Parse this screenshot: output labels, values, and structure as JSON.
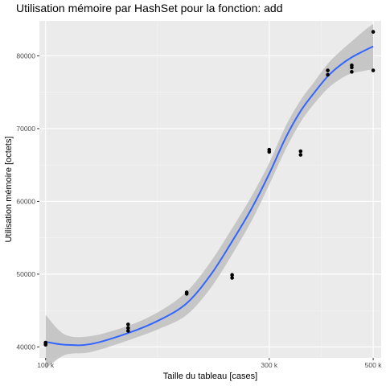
{
  "chart_data": {
    "type": "scatter",
    "title": "Utilisation mémoire par HashSet pour la fonction: add",
    "xlabel": "Taille du tableau [cases]",
    "ylabel": "Utilisation mémoire [octets]",
    "x_scale": "log",
    "xlim": [
      97000,
      520000
    ],
    "ylim": [
      38500,
      84800
    ],
    "x_ticks": [
      {
        "value": 100000,
        "label": "100 k"
      },
      {
        "value": 300000,
        "label": "300 k"
      },
      {
        "value": 500000,
        "label": "500 k"
      }
    ],
    "x_minor_ticks": [
      173200,
      387300
    ],
    "y_ticks": [
      {
        "value": 40000,
        "label": "40000"
      },
      {
        "value": 50000,
        "label": "50000"
      },
      {
        "value": 60000,
        "label": "60000"
      },
      {
        "value": 70000,
        "label": "70000"
      },
      {
        "value": 80000,
        "label": "80000"
      }
    ],
    "grid": true,
    "points": [
      {
        "x": 100000,
        "y": 40300
      },
      {
        "x": 100000,
        "y": 40500
      },
      {
        "x": 100000,
        "y": 40600
      },
      {
        "x": 150000,
        "y": 42200
      },
      {
        "x": 150000,
        "y": 42600
      },
      {
        "x": 150000,
        "y": 43100
      },
      {
        "x": 200000,
        "y": 47300
      },
      {
        "x": 200000,
        "y": 47500
      },
      {
        "x": 250000,
        "y": 49500
      },
      {
        "x": 250000,
        "y": 49900
      },
      {
        "x": 300000,
        "y": 66800
      },
      {
        "x": 300000,
        "y": 67100
      },
      {
        "x": 350000,
        "y": 66400
      },
      {
        "x": 350000,
        "y": 66900
      },
      {
        "x": 400000,
        "y": 77400
      },
      {
        "x": 400000,
        "y": 78000
      },
      {
        "x": 450000,
        "y": 77800
      },
      {
        "x": 450000,
        "y": 78400
      },
      {
        "x": 450000,
        "y": 78700
      },
      {
        "x": 500000,
        "y": 78000
      },
      {
        "x": 500000,
        "y": 83300
      }
    ],
    "smooth": {
      "x": [
        100000,
        110000,
        125000,
        150000,
        175000,
        200000,
        225000,
        250000,
        275000,
        300000,
        325000,
        350000,
        375000,
        400000,
        425000,
        450000,
        475000,
        500000
      ],
      "y": [
        40700,
        40300,
        40400,
        41900,
        43700,
        46000,
        49900,
        54500,
        59000,
        63800,
        68700,
        72400,
        75000,
        77200,
        78700,
        79800,
        80600,
        81300
      ],
      "lower": [
        37000,
        38900,
        39300,
        40900,
        42500,
        44400,
        48100,
        52700,
        57300,
        62300,
        67100,
        70900,
        73500,
        75500,
        76800,
        77600,
        77900,
        78200
      ],
      "upper": [
        44400,
        41700,
        41500,
        42900,
        44900,
        47600,
        51700,
        56300,
        60700,
        65300,
        70300,
        73900,
        76500,
        78900,
        80600,
        82000,
        83300,
        84400
      ]
    },
    "colors": {
      "panel": "#ebebeb",
      "grid_major": "#ffffff",
      "point": "#000000",
      "line": "#3366ff",
      "ribbon": "#c2c2c2",
      "tick_text": "#4d4d4d"
    }
  }
}
